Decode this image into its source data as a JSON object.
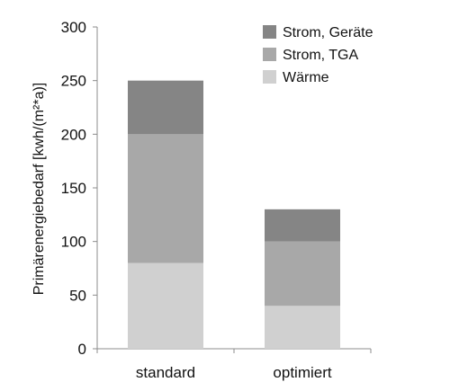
{
  "chart_data": {
    "type": "bar",
    "stacked": true,
    "categories": [
      "standard",
      "optimiert"
    ],
    "series": [
      {
        "name": "Wärme",
        "values": [
          80,
          40
        ],
        "color": "#d0d0d0"
      },
      {
        "name": "Strom, TGA",
        "values": [
          120,
          60
        ],
        "color": "#a8a8a8"
      },
      {
        "name": "Strom, Geräte",
        "values": [
          50,
          30
        ],
        "color": "#858585"
      }
    ],
    "legend_order": [
      "Strom, Geräte",
      "Strom, TGA",
      "Wärme"
    ],
    "ylabel": "Primärenergiebedarf [kwh/(m²*a)]",
    "xlabel": "",
    "ylim": [
      0,
      300
    ],
    "yticks": [
      0,
      50,
      100,
      150,
      200,
      250,
      300
    ],
    "grid": false,
    "legend_position": "top-right",
    "axis_color": "#8c8c8c"
  }
}
